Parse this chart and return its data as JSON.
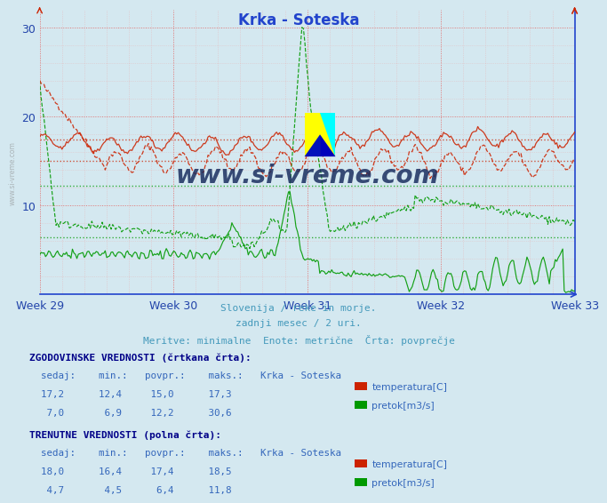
{
  "title": "Krka - Soteska",
  "bg_color": "#d4e8f0",
  "plot_bg_color": "#d4e8f0",
  "title_color": "#2244cc",
  "tick_color": "#2244aa",
  "grid_color_major": "#dd7777",
  "grid_color_minor": "#eaaaaa",
  "spine_color": "#2244cc",
  "weeks": [
    "Week 29",
    "Week 30",
    "Week 31",
    "Week 32",
    "Week 33"
  ],
  "ylim": [
    0,
    32
  ],
  "yticks": [
    10,
    20,
    30
  ],
  "temp_color": "#cc2200",
  "flow_color": "#009900",
  "watermark": "www.si-vreme.com",
  "watermark_color": "#1a2e60",
  "subtitle_color": "#4499bb",
  "table_color": "#3366bb",
  "table_bold_color": "#000088",
  "num_points": 360,
  "sidebar_color": "#888888"
}
